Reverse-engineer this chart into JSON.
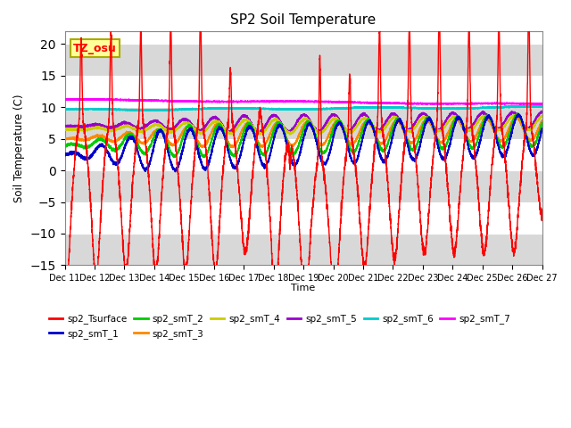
{
  "title": "SP2 Soil Temperature",
  "ylabel": "Soil Temperature (C)",
  "xlabel": "Time",
  "annotation": "TZ_osu",
  "ylim": [
    -15,
    22
  ],
  "yticks": [
    -15,
    -10,
    -5,
    0,
    5,
    10,
    15,
    20
  ],
  "plot_bg_color": "#ffffff",
  "fig_bg_color": "#ffffff",
  "series_colors": {
    "sp2_Tsurface": "#ff0000",
    "sp2_smT_1": "#0000cc",
    "sp2_smT_2": "#00cc00",
    "sp2_smT_3": "#ff8800",
    "sp2_smT_4": "#cccc00",
    "sp2_smT_5": "#9900cc",
    "sp2_smT_6": "#00cccc",
    "sp2_smT_7": "#ff00ff"
  },
  "gray_band_color": "#d8d8d8",
  "n_points": 5000
}
